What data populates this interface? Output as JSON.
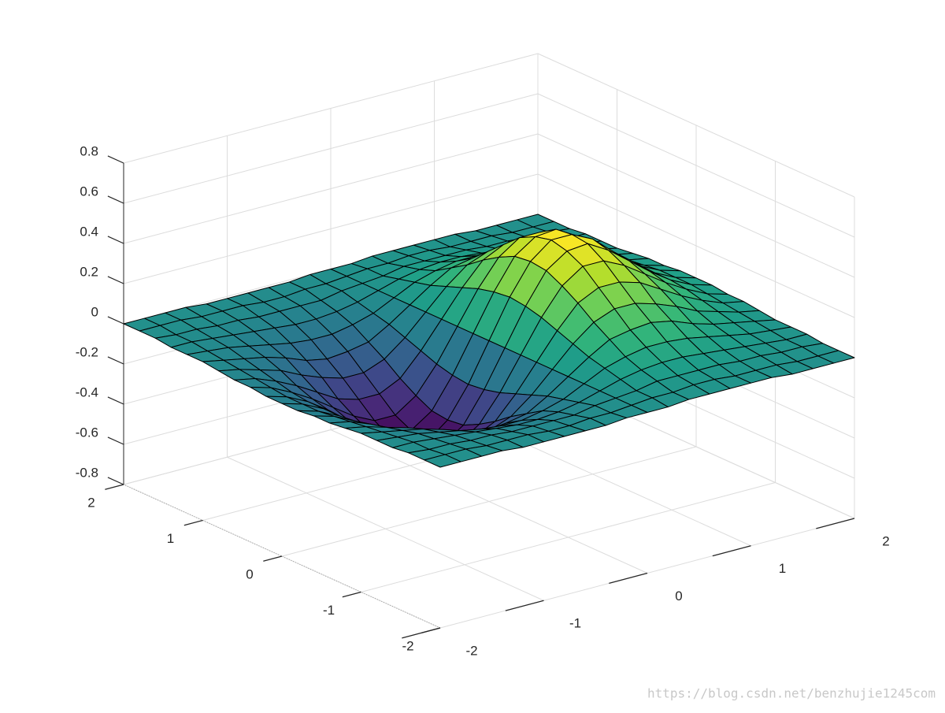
{
  "chart_data": {
    "type": "surface",
    "x": [
      -2,
      -1.8,
      -1.6,
      -1.4,
      -1.2,
      -1,
      -0.8,
      -0.6,
      -0.4,
      -0.2,
      0,
      0.2,
      0.4,
      0.6,
      0.8,
      1,
      1.2,
      1.4,
      1.6,
      1.8,
      2
    ],
    "y": [
      -2,
      -1.8,
      -1.6,
      -1.4,
      -1.2,
      -1,
      -0.8,
      -0.6,
      -0.4,
      -0.2,
      0,
      0.2,
      0.4,
      0.6,
      0.8,
      1,
      1.2,
      1.4,
      1.6,
      1.8,
      2
    ],
    "z": [
      [
        0,
        0,
        0,
        0,
        -0.01,
        -0.01,
        -0.01,
        -0.01,
        -0.01,
        0,
        0,
        0,
        0.01,
        0.01,
        0.01,
        0.01,
        0.01,
        0,
        0,
        0,
        0
      ],
      [
        0,
        0,
        0,
        -0.01,
        -0.01,
        -0.01,
        -0.02,
        -0.02,
        -0.01,
        -0.01,
        0,
        0.01,
        0.01,
        0.02,
        0.02,
        0.01,
        0.01,
        0.01,
        0,
        0,
        0
      ],
      [
        0,
        -0.01,
        -0.01,
        -0.02,
        -0.02,
        -0.03,
        -0.03,
        -0.03,
        -0.03,
        -0.01,
        0,
        0.01,
        0.03,
        0.03,
        0.03,
        0.03,
        0.02,
        0.02,
        0.01,
        0.01,
        0
      ],
      [
        -0.01,
        -0.01,
        -0.02,
        -0.03,
        -0.04,
        -0.05,
        -0.06,
        -0.06,
        -0.05,
        -0.03,
        0,
        0.03,
        0.05,
        0.06,
        0.06,
        0.05,
        0.04,
        0.03,
        0.02,
        0.01,
        0.01
      ],
      [
        -0.01,
        -0.02,
        -0.03,
        -0.05,
        -0.07,
        -0.09,
        -0.1,
        -0.1,
        -0.08,
        -0.05,
        0,
        0.05,
        0.08,
        0.1,
        0.1,
        0.09,
        0.07,
        0.05,
        0.03,
        0.02,
        0.01
      ],
      [
        -0.01,
        -0.03,
        -0.05,
        -0.07,
        -0.1,
        -0.14,
        -0.16,
        -0.15,
        -0.13,
        -0.07,
        0,
        0.07,
        0.13,
        0.15,
        0.16,
        0.14,
        0.1,
        0.07,
        0.05,
        0.03,
        0.01
      ],
      [
        -0.02,
        -0.04,
        -0.07,
        -0.1,
        -0.15,
        -0.19,
        -0.22,
        -0.22,
        -0.18,
        -0.1,
        0,
        0.1,
        0.18,
        0.22,
        0.22,
        0.19,
        0.15,
        0.1,
        0.07,
        0.04,
        0.02
      ],
      [
        -0.03,
        -0.05,
        -0.09,
        -0.14,
        -0.2,
        -0.26,
        -0.29,
        -0.29,
        -0.24,
        -0.13,
        0,
        0.13,
        0.24,
        0.29,
        0.29,
        0.26,
        0.2,
        0.14,
        0.09,
        0.05,
        0.03
      ],
      [
        -0.03,
        -0.06,
        -0.11,
        -0.17,
        -0.24,
        -0.31,
        -0.36,
        -0.36,
        -0.29,
        -0.16,
        0,
        0.16,
        0.29,
        0.36,
        0.36,
        0.31,
        0.24,
        0.17,
        0.11,
        0.06,
        0.03
      ],
      [
        -0.04,
        -0.07,
        -0.12,
        -0.19,
        -0.27,
        -0.35,
        -0.41,
        -0.4,
        -0.33,
        -0.18,
        0,
        0.18,
        0.33,
        0.4,
        0.41,
        0.35,
        0.27,
        0.19,
        0.12,
        0.07,
        0.04
      ],
      [
        -0.04,
        -0.07,
        -0.12,
        -0.2,
        -0.28,
        -0.37,
        -0.42,
        -0.42,
        -0.34,
        -0.19,
        0,
        0.19,
        0.34,
        0.42,
        0.42,
        0.37,
        0.28,
        0.2,
        0.12,
        0.07,
        0.04
      ],
      [
        -0.04,
        -0.07,
        -0.12,
        -0.19,
        -0.27,
        -0.35,
        -0.41,
        -0.4,
        -0.33,
        -0.18,
        0,
        0.18,
        0.33,
        0.4,
        0.41,
        0.35,
        0.27,
        0.19,
        0.12,
        0.07,
        0.04
      ],
      [
        -0.03,
        -0.06,
        -0.11,
        -0.17,
        -0.24,
        -0.31,
        -0.36,
        -0.36,
        -0.29,
        -0.16,
        0,
        0.16,
        0.29,
        0.36,
        0.36,
        0.31,
        0.24,
        0.17,
        0.11,
        0.06,
        0.03
      ],
      [
        -0.03,
        -0.05,
        -0.09,
        -0.14,
        -0.2,
        -0.26,
        -0.29,
        -0.29,
        -0.24,
        -0.13,
        0,
        0.13,
        0.24,
        0.29,
        0.29,
        0.26,
        0.2,
        0.14,
        0.09,
        0.05,
        0.03
      ],
      [
        -0.02,
        -0.04,
        -0.07,
        -0.1,
        -0.15,
        -0.19,
        -0.22,
        -0.22,
        -0.18,
        -0.1,
        0,
        0.1,
        0.18,
        0.22,
        0.22,
        0.19,
        0.15,
        0.1,
        0.07,
        0.04,
        0.02
      ],
      [
        -0.01,
        -0.03,
        -0.05,
        -0.07,
        -0.1,
        -0.14,
        -0.16,
        -0.15,
        -0.13,
        -0.07,
        0,
        0.07,
        0.13,
        0.15,
        0.16,
        0.14,
        0.1,
        0.07,
        0.05,
        0.03,
        0.01
      ],
      [
        -0.01,
        -0.02,
        -0.03,
        -0.05,
        -0.07,
        -0.09,
        -0.1,
        -0.1,
        -0.08,
        -0.05,
        0,
        0.05,
        0.08,
        0.1,
        0.1,
        0.09,
        0.07,
        0.05,
        0.03,
        0.02,
        0.01
      ],
      [
        -0.01,
        -0.01,
        -0.02,
        -0.03,
        -0.04,
        -0.05,
        -0.06,
        -0.06,
        -0.05,
        -0.03,
        0,
        0.03,
        0.05,
        0.06,
        0.06,
        0.05,
        0.04,
        0.03,
        0.02,
        0.01,
        0.01
      ],
      [
        0,
        -0.01,
        -0.01,
        -0.02,
        -0.02,
        -0.03,
        -0.03,
        -0.03,
        -0.03,
        -0.01,
        0,
        0.01,
        0.03,
        0.03,
        0.03,
        0.03,
        0.02,
        0.02,
        0.01,
        0.01,
        0
      ],
      [
        0,
        0,
        0,
        -0.01,
        -0.01,
        -0.01,
        -0.02,
        -0.02,
        -0.01,
        -0.01,
        0,
        0.01,
        0.01,
        0.02,
        0.02,
        0.01,
        0.01,
        0.01,
        0,
        0,
        0
      ],
      [
        0,
        0,
        0,
        0,
        -0.01,
        -0.01,
        -0.01,
        -0.01,
        -0.01,
        0,
        0,
        0,
        0.01,
        0.01,
        0.01,
        0.01,
        0.01,
        0,
        0,
        0,
        0
      ]
    ],
    "xlim": [
      -2,
      2
    ],
    "ylim": [
      -2,
      2
    ],
    "zlim": [
      -0.8,
      0.8
    ],
    "xticks": [
      -2,
      -1,
      0,
      1,
      2
    ],
    "yticks": [
      -2,
      -1,
      0,
      1,
      2
    ],
    "zticks": [
      -0.8,
      -0.6,
      -0.4,
      -0.2,
      0,
      0.2,
      0.4,
      0.6,
      0.8
    ],
    "grid": true,
    "edge_color": "#000000",
    "colormap": [
      "#440154",
      "#482878",
      "#3e4989",
      "#31688e",
      "#26828e",
      "#1f9e89",
      "#35b779",
      "#6ece58",
      "#b5de2b",
      "#fde725"
    ],
    "watermark": "https://blog.csdn.net/benzhujie1245com"
  }
}
